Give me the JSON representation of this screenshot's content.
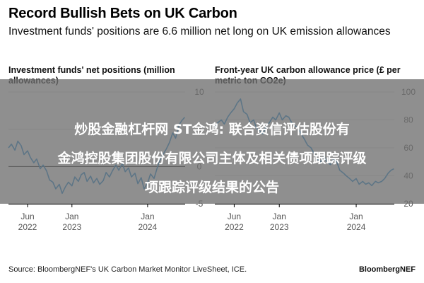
{
  "header": {
    "title": "Record Bullish Bets on UK Carbon",
    "subtitle": "Investment funds' positions are 6.6 million net long on UK emission allowances"
  },
  "overlay": {
    "line1": "炒股金融杠杆网 ST金鸿: 联合资信评估股份有",
    "line2": "金鸿控股集团股份有限公司主体及相关债项跟踪评级",
    "line3": "项跟踪评级结果的公告"
  },
  "footer": {
    "source": "Source: BloombergNEF's UK Carbon Market Monitor LiveSheet, ICE.",
    "brand": "BloombergNEF"
  },
  "chart_data": [
    {
      "type": "line",
      "title": "Investment funds' net positions (million allowances)",
      "x_ticks": [
        {
          "date": "2022-06-01",
          "label": [
            "Jun",
            "2022"
          ]
        },
        {
          "date": "2023-01-01",
          "label": [
            "Jan",
            "2023"
          ]
        },
        {
          "date": "2024-01-01",
          "label": [
            "Jan",
            "2024"
          ]
        }
      ],
      "xlim": [
        "2022-03-01",
        "2024-06-30"
      ],
      "ylim": [
        -5,
        10
      ],
      "y_ticks": [
        10,
        5,
        0,
        -5
      ],
      "y_tick_side": "right",
      "grid": true,
      "zero_line": 0,
      "color": "#1f8ad7",
      "series": [
        {
          "x": [
            "2022-03-01",
            "2022-03-15",
            "2022-04-01",
            "2022-04-15",
            "2022-05-01",
            "2022-05-15",
            "2022-06-01",
            "2022-06-15",
            "2022-07-01",
            "2022-07-15",
            "2022-08-01",
            "2022-08-15",
            "2022-09-01",
            "2022-09-15",
            "2022-10-01",
            "2022-10-15",
            "2022-11-01",
            "2022-11-15",
            "2022-12-01",
            "2022-12-15",
            "2023-01-01",
            "2023-01-15",
            "2023-02-01",
            "2023-02-15",
            "2023-03-01",
            "2023-03-15",
            "2023-04-01",
            "2023-04-15",
            "2023-05-01",
            "2023-05-15",
            "2023-06-01",
            "2023-06-15",
            "2023-07-01",
            "2023-07-15",
            "2023-08-01",
            "2023-08-15",
            "2023-09-01",
            "2023-09-15",
            "2023-10-01",
            "2023-10-15",
            "2023-11-01",
            "2023-11-15",
            "2023-12-01",
            "2023-12-15",
            "2024-01-01",
            "2024-01-15",
            "2024-02-01",
            "2024-02-15",
            "2024-03-01",
            "2024-03-15",
            "2024-04-01",
            "2024-04-15",
            "2024-05-01",
            "2024-05-15",
            "2024-06-01",
            "2024-06-15",
            "2024-06-28"
          ],
          "y": [
            2.5,
            3.0,
            2.2,
            3.4,
            2.8,
            1.6,
            2.1,
            1.2,
            0.5,
            1.0,
            -0.3,
            0.2,
            -0.6,
            -1.8,
            -2.1,
            -3.0,
            -2.4,
            -3.6,
            -2.7,
            -2.1,
            -2.6,
            -1.4,
            -2.0,
            -1.1,
            -0.8,
            -2.0,
            -1.3,
            -2.2,
            -1.6,
            -2.4,
            -1.9,
            -0.8,
            -1.4,
            -0.6,
            0.2,
            -0.5,
            0.4,
            -0.7,
            -0.2,
            -1.4,
            -0.9,
            -2.3,
            -1.5,
            -3.0,
            -2.2,
            -1.0,
            -1.6,
            -0.3,
            0.9,
            1.6,
            2.4,
            3.2,
            4.5,
            3.8,
            5.6,
            6.2,
            6.6
          ]
        }
      ]
    },
    {
      "type": "line",
      "title": "Front-year UK carbon allowance price (£ per metric ton CO2e)",
      "x_ticks": [
        {
          "date": "2022-06-01",
          "label": [
            "Jun",
            "2022"
          ]
        },
        {
          "date": "2023-01-01",
          "label": [
            "Jan",
            "2023"
          ]
        },
        {
          "date": "2024-01-01",
          "label": [
            "Jan",
            "2024"
          ]
        }
      ],
      "xlim": [
        "2022-03-01",
        "2024-06-30"
      ],
      "ylim": [
        20,
        100
      ],
      "y_ticks": [
        100,
        80,
        60,
        40,
        20
      ],
      "y_tick_side": "right",
      "grid": true,
      "color": "#1f8ad7",
      "series": [
        {
          "x": [
            "2022-03-01",
            "2022-03-15",
            "2022-04-01",
            "2022-04-15",
            "2022-05-01",
            "2022-05-15",
            "2022-06-01",
            "2022-06-15",
            "2022-07-01",
            "2022-07-15",
            "2022-08-01",
            "2022-08-15",
            "2022-09-01",
            "2022-09-15",
            "2022-10-01",
            "2022-10-15",
            "2022-11-01",
            "2022-11-15",
            "2022-12-01",
            "2022-12-15",
            "2023-01-01",
            "2023-01-15",
            "2023-02-01",
            "2023-02-15",
            "2023-03-01",
            "2023-03-15",
            "2023-04-01",
            "2023-04-15",
            "2023-05-01",
            "2023-05-15",
            "2023-06-01",
            "2023-06-15",
            "2023-07-01",
            "2023-07-15",
            "2023-08-01",
            "2023-08-15",
            "2023-09-01",
            "2023-09-15",
            "2023-10-01",
            "2023-10-15",
            "2023-11-01",
            "2023-11-15",
            "2023-12-01",
            "2023-12-15",
            "2024-01-01",
            "2024-01-15",
            "2024-02-01",
            "2024-02-15",
            "2024-03-01",
            "2024-03-15",
            "2024-04-01",
            "2024-04-15",
            "2024-05-01",
            "2024-05-15",
            "2024-06-01",
            "2024-06-15",
            "2024-06-28"
          ],
          "y": [
            74,
            78,
            80,
            77,
            82,
            85,
            88,
            92,
            95,
            86,
            84,
            78,
            80,
            74,
            72,
            70,
            76,
            78,
            82,
            80,
            85,
            80,
            83,
            82,
            78,
            76,
            74,
            70,
            66,
            62,
            60,
            56,
            52,
            50,
            54,
            50,
            48,
            52,
            50,
            44,
            42,
            40,
            38,
            36,
            38,
            34,
            36,
            34,
            35,
            33,
            36,
            35,
            36,
            38,
            42,
            44,
            45
          ]
        }
      ]
    }
  ]
}
